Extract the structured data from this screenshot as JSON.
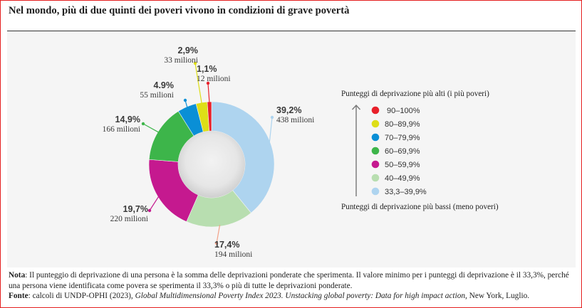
{
  "title": "Nel mondo, più di due quinti dei poveri vivono in condizioni di grave povertà",
  "chart_data": {
    "type": "pie",
    "subtype": "donut",
    "title": "Nel mondo, più di due quinti dei poveri vivono in condizioni di grave povertà",
    "start": "top",
    "direction": "clockwise",
    "slices": [
      {
        "category": "33,3–39,9%",
        "value": 39.2,
        "label": "39,2%",
        "people": "438 milioni",
        "color": "#aed4ef",
        "leader_color": "#aed4ef"
      },
      {
        "category": "40–49,9%",
        "value": 17.4,
        "label": "17,4%",
        "people": "194 milioni",
        "color": "#b8deb0",
        "leader_color": "#f2a188"
      },
      {
        "category": "50–59,9%",
        "value": 19.7,
        "label": "19,7%",
        "people": "220 milioni",
        "color": "#c5198f",
        "leader_color": "#c5198f"
      },
      {
        "category": "60–69,9%",
        "value": 14.9,
        "label": "14,9%",
        "people": "166 milioni",
        "color": "#3db54a",
        "leader_color": "#3db54a"
      },
      {
        "category": "70–79,9%",
        "value": 4.9,
        "label": "4.9%",
        "people": "55 milioni",
        "color": "#0a8fd6",
        "leader_color": "#0a8fd6"
      },
      {
        "category": "80–89,9%",
        "value": 2.9,
        "label": "2,9%",
        "people": "33 milioni",
        "color": "#dede17",
        "leader_color": "#dede17"
      },
      {
        "category": "90–100%",
        "value": 1.1,
        "label": "1,1%",
        "people": "12 milioni",
        "color": "#e8202a",
        "leader_color": "#e8202a"
      }
    ],
    "legend": {
      "position": "right",
      "top_caption": "Punteggi di deprivazione più alti (i più poveri)",
      "bottom_caption": "Punteggi di deprivazione più bassi (meno poveri)",
      "entries": [
        {
          "label": "90–100%",
          "color": "#e8202a"
        },
        {
          "label": "80–89,9%",
          "color": "#dede17"
        },
        {
          "label": "70–79,9%",
          "color": "#0a8fd6"
        },
        {
          "label": "60–69,9%",
          "color": "#3db54a"
        },
        {
          "label": "50–59,9%",
          "color": "#c5198f"
        },
        {
          "label": "40–49,9%",
          "color": "#b8deb0"
        },
        {
          "label": "33,3–39,9%",
          "color": "#aed4ef"
        }
      ]
    }
  },
  "notes": {
    "nota_label": "Nota",
    "nota_text": ": Il punteggio di deprivazione di una persona è la somma delle deprivazioni ponderate che sperimenta. Il valore minimo per i punteggi di deprivazione è il 33,3%, perché una persona viene identificata come povera se sperimenta il 33,3% o più di tutte le deprivazioni ponderate.",
    "fonte_label": "Fonte",
    "fonte_text_pre": ": calcoli di UNDP-OPHI (2023), ",
    "fonte_title": "Global Multidimensional Poverty Index 2023. Unstacking global poverty: Data for high impact action",
    "fonte_text_post": ", New York, Luglio."
  },
  "colors": {
    "frame": "#e41f1f",
    "panel": "#f5f5f5"
  }
}
